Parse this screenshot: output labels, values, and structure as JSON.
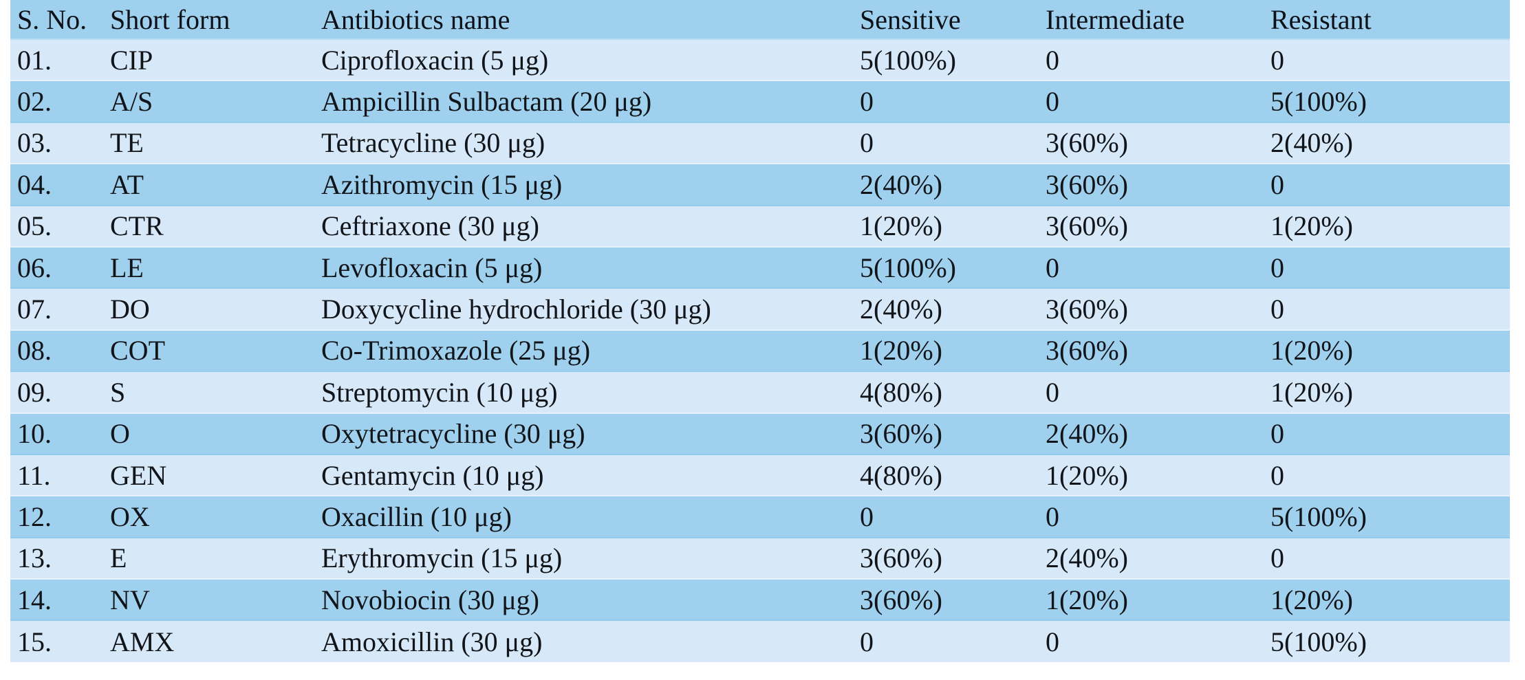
{
  "table": {
    "columns": [
      {
        "label": "S. No."
      },
      {
        "label": "Short form"
      },
      {
        "label": "Antibiotics name"
      },
      {
        "label": "Sensitive"
      },
      {
        "label": "Intermediate"
      },
      {
        "label": "Resistant"
      }
    ],
    "rows": [
      [
        "01.",
        "CIP",
        "Ciprofloxacin (5 μg)",
        "5(100%)",
        "0",
        "0"
      ],
      [
        "02.",
        "A/S",
        "Ampicillin Sulbactam (20 μg)",
        "0",
        "0",
        "5(100%)"
      ],
      [
        "03.",
        "TE",
        "Tetracycline (30 μg)",
        "0",
        "3(60%)",
        "2(40%)"
      ],
      [
        "04.",
        "AT",
        "Azithromycin (15 μg)",
        "2(40%)",
        "3(60%)",
        "0"
      ],
      [
        "05.",
        "CTR",
        "Ceftriaxone (30 μg)",
        "1(20%)",
        "3(60%)",
        "1(20%)"
      ],
      [
        "06.",
        "LE",
        "Levofloxacin (5 μg)",
        "5(100%)",
        "0",
        "0"
      ],
      [
        "07.",
        "DO",
        "Doxycycline hydrochloride (30 μg)",
        "2(40%)",
        "3(60%)",
        "0"
      ],
      [
        "08.",
        "COT",
        "Co-Trimoxazole (25 μg)",
        "1(20%)",
        "3(60%)",
        "1(20%)"
      ],
      [
        "09.",
        "S",
        "Streptomycin (10 μg)",
        "4(80%)",
        "0",
        "1(20%)"
      ],
      [
        "10.",
        "O",
        "Oxytetracycline (30 μg)",
        "3(60%)",
        "2(40%)",
        "0"
      ],
      [
        "11.",
        "GEN",
        "Gentamycin (10 μg)",
        "4(80%)",
        "1(20%)",
        "0"
      ],
      [
        "12.",
        "OX",
        "Oxacillin (10 μg)",
        "0",
        "0",
        "5(100%)"
      ],
      [
        "13.",
        "E",
        "Erythromycin (15 μg)",
        "3(60%)",
        "2(40%)",
        "0"
      ],
      [
        "14.",
        "NV",
        "Novobiocin (30 μg)",
        "3(60%)",
        "1(20%)",
        "1(20%)"
      ],
      [
        "15.",
        "AMX",
        "Amoxicillin (30 μg)",
        "0",
        "0",
        "5(100%)"
      ]
    ]
  },
  "colors": {
    "row_light": "#d7e9f8",
    "row_dark": "#9fd1ef",
    "header_bg": "#9fd1ef",
    "text": "#111418",
    "page_bg": "#ffffff"
  }
}
